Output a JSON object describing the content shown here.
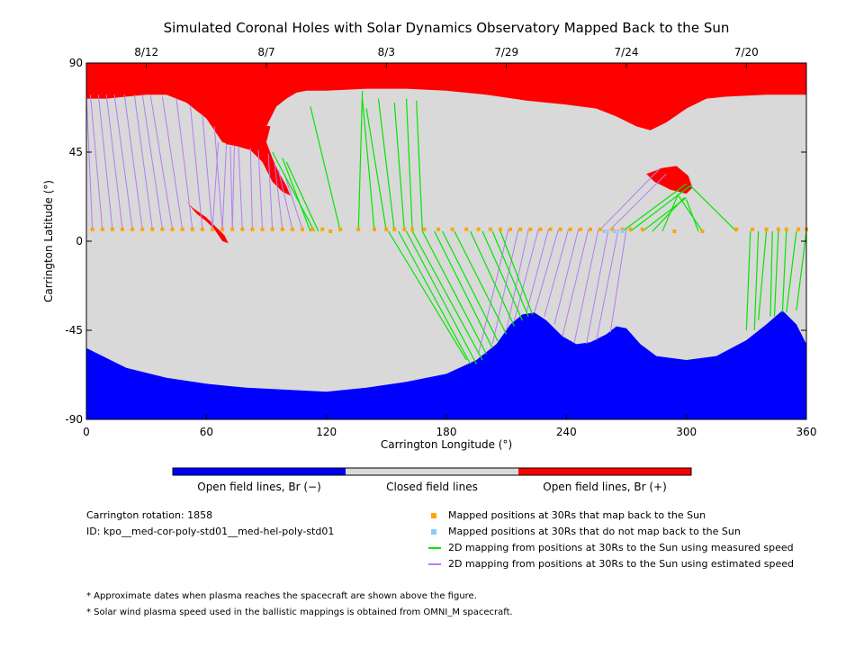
{
  "chart_data": {
    "type": "heatmap",
    "title": "Simulated Coronal Holes with Solar Dynamics Observatory Mapped Back to the Sun",
    "xlabel": "Carrington Longitude (°)",
    "ylabel": "Carrington Latitude (°)",
    "xlim": [
      0,
      360
    ],
    "ylim": [
      -90,
      90
    ],
    "xticks": [
      0,
      60,
      120,
      180,
      240,
      300,
      360
    ],
    "yticks": [
      -90,
      -45,
      0,
      45,
      90
    ],
    "top_axis": {
      "ticks": [
        {
          "label": "8/12",
          "lon": 30
        },
        {
          "label": "8/7",
          "lon": 90
        },
        {
          "label": "8/3",
          "lon": 150
        },
        {
          "label": "7/29",
          "lon": 210
        },
        {
          "label": "7/24",
          "lon": 270
        },
        {
          "label": "7/20",
          "lon": 330
        }
      ]
    },
    "colors": {
      "positive": "#ff0000",
      "negative": "#0000ff",
      "closed": "#d9d9d9",
      "mapped": "#ffa500",
      "not_mapped": "#87cefa",
      "measured": "#00e600",
      "estimated": "#b57cf2"
    },
    "north_boundary": [
      [
        0,
        72
      ],
      [
        10,
        72
      ],
      [
        20,
        73
      ],
      [
        30,
        74
      ],
      [
        40,
        74
      ],
      [
        50,
        70
      ],
      [
        60,
        62
      ],
      [
        65,
        55
      ],
      [
        70,
        49
      ],
      [
        75,
        48
      ],
      [
        80,
        49
      ],
      [
        85,
        52
      ],
      [
        90,
        58
      ],
      [
        95,
        68
      ],
      [
        100,
        72
      ],
      [
        105,
        75
      ],
      [
        110,
        76
      ],
      [
        120,
        76
      ],
      [
        140,
        77
      ],
      [
        160,
        77
      ],
      [
        180,
        76
      ],
      [
        200,
        74
      ],
      [
        220,
        71
      ],
      [
        240,
        69
      ],
      [
        255,
        67
      ],
      [
        265,
        63
      ],
      [
        275,
        58
      ],
      [
        282,
        56
      ],
      [
        290,
        60
      ],
      [
        300,
        67
      ],
      [
        310,
        72
      ],
      [
        320,
        73
      ],
      [
        340,
        74
      ],
      [
        360,
        74
      ]
    ],
    "south_boundary": [
      [
        0,
        -54
      ],
      [
        10,
        -59
      ],
      [
        20,
        -64
      ],
      [
        40,
        -69
      ],
      [
        60,
        -72
      ],
      [
        80,
        -74
      ],
      [
        100,
        -75
      ],
      [
        120,
        -76
      ],
      [
        140,
        -74
      ],
      [
        160,
        -71
      ],
      [
        180,
        -67
      ],
      [
        195,
        -60
      ],
      [
        205,
        -52
      ],
      [
        212,
        -42
      ],
      [
        218,
        -37
      ],
      [
        224,
        -36
      ],
      [
        230,
        -40
      ],
      [
        238,
        -48
      ],
      [
        245,
        -52
      ],
      [
        252,
        -51
      ],
      [
        260,
        -47
      ],
      [
        265,
        -43
      ],
      [
        270,
        -44
      ],
      [
        277,
        -52
      ],
      [
        285,
        -58
      ],
      [
        300,
        -60
      ],
      [
        315,
        -58
      ],
      [
        330,
        -50
      ],
      [
        340,
        -42
      ],
      [
        348,
        -35
      ],
      [
        355,
        -42
      ],
      [
        360,
        -52
      ]
    ],
    "positive_patches": [
      [
        [
          60,
          62
        ],
        [
          68,
          50
        ],
        [
          75,
          48
        ],
        [
          82,
          46
        ],
        [
          88,
          40
        ],
        [
          93,
          30
        ],
        [
          98,
          25
        ],
        [
          102,
          23
        ],
        [
          100,
          28
        ],
        [
          96,
          35
        ],
        [
          93,
          42
        ],
        [
          90,
          50
        ],
        [
          92,
          58
        ]
      ],
      [
        [
          50,
          20
        ],
        [
          55,
          14
        ],
        [
          60,
          10
        ],
        [
          64,
          6
        ],
        [
          68,
          0
        ],
        [
          71,
          -1
        ],
        [
          69,
          3
        ],
        [
          65,
          7
        ],
        [
          60,
          12
        ],
        [
          53,
          17
        ]
      ],
      [
        [
          280,
          34
        ],
        [
          288,
          37
        ],
        [
          295,
          38
        ],
        [
          301,
          33
        ],
        [
          303,
          27
        ],
        [
          300,
          24
        ],
        [
          292,
          26
        ],
        [
          284,
          30
        ]
      ]
    ],
    "mapped_points": {
      "lat": 6,
      "lon": [
        3,
        8,
        13,
        18,
        23,
        28,
        33,
        38,
        43,
        48,
        53,
        58,
        63,
        68,
        73,
        78,
        83,
        88,
        93,
        98,
        103,
        108,
        113,
        118,
        122,
        127,
        136,
        144,
        150,
        154,
        159,
        163,
        169,
        176,
        183,
        190,
        196,
        202,
        207,
        212,
        217,
        222,
        227,
        232,
        237,
        242,
        247,
        252,
        257,
        263,
        268,
        272,
        278,
        294,
        308,
        325,
        333,
        340,
        346,
        350,
        356,
        360
      ],
      "lat_overrides": [
        {
          "lon": 122,
          "lat": 5
        },
        {
          "lon": 308,
          "lat": 5
        },
        {
          "lon": 294,
          "lat": 5
        }
      ]
    },
    "unmapped_points": {
      "lat": 5,
      "lon": [
        259,
        264,
        268
      ]
    },
    "measured_lines": [
      [
        112,
        5,
        98,
        42
      ],
      [
        114,
        5,
        93,
        45
      ],
      [
        116,
        5,
        100,
        40
      ],
      [
        127,
        5,
        112,
        68
      ],
      [
        136,
        5,
        138,
        76
      ],
      [
        144,
        5,
        138,
        72
      ],
      [
        150,
        5,
        140,
        67
      ],
      [
        154,
        5,
        146,
        72
      ],
      [
        159,
        5,
        154,
        70
      ],
      [
        163,
        5,
        160,
        72
      ],
      [
        168,
        5,
        165,
        71
      ],
      [
        151,
        5,
        190,
        -60
      ],
      [
        156,
        5,
        192,
        -62
      ],
      [
        160,
        5,
        195,
        -62
      ],
      [
        163,
        5,
        198,
        -60
      ],
      [
        168,
        5,
        200,
        -57
      ],
      [
        174,
        5,
        203,
        -54
      ],
      [
        178,
        5,
        206,
        -51
      ],
      [
        184,
        5,
        210,
        -47
      ],
      [
        192,
        5,
        214,
        -43
      ],
      [
        198,
        5,
        218,
        -40
      ],
      [
        203,
        5,
        221,
        -38
      ],
      [
        207,
        5,
        223,
        -37
      ],
      [
        268,
        5,
        300,
        29
      ],
      [
        272,
        5,
        302,
        28
      ],
      [
        278,
        5,
        300,
        22
      ],
      [
        283,
        5,
        299,
        22
      ],
      [
        288,
        5,
        296,
        24
      ],
      [
        308,
        5,
        296,
        23
      ],
      [
        306,
        5,
        300,
        21
      ],
      [
        325,
        5,
        302,
        28
      ],
      [
        332,
        5,
        330,
        -45
      ],
      [
        336,
        5,
        334,
        -45
      ],
      [
        340,
        5,
        336,
        -40
      ],
      [
        343,
        5,
        342,
        -38
      ],
      [
        346,
        5,
        344,
        -38
      ],
      [
        350,
        5,
        348,
        -36
      ],
      [
        355,
        5,
        350,
        -36
      ],
      [
        360,
        5,
        355,
        -35
      ]
    ],
    "estimated_lines": [
      [
        3,
        6,
        0,
        74
      ],
      [
        8,
        6,
        2,
        74
      ],
      [
        13,
        6,
        6,
        74
      ],
      [
        18,
        6,
        10,
        74
      ],
      [
        23,
        6,
        14,
        74
      ],
      [
        28,
        6,
        19,
        74
      ],
      [
        33,
        6,
        24,
        74
      ],
      [
        38,
        6,
        28,
        74
      ],
      [
        43,
        6,
        32,
        74
      ],
      [
        48,
        6,
        38,
        73
      ],
      [
        53,
        6,
        45,
        72
      ],
      [
        58,
        6,
        52,
        68
      ],
      [
        63,
        6,
        58,
        64
      ],
      [
        68,
        6,
        64,
        58
      ],
      [
        73,
        6,
        72,
        48
      ],
      [
        78,
        6,
        76,
        48
      ],
      [
        83,
        6,
        82,
        47
      ],
      [
        88,
        6,
        86,
        46
      ],
      [
        93,
        6,
        91,
        44
      ],
      [
        98,
        6,
        94,
        40
      ],
      [
        103,
        6,
        96,
        36
      ],
      [
        108,
        6,
        99,
        34
      ],
      [
        63,
        6,
        66,
        50
      ],
      [
        68,
        6,
        70,
        49
      ],
      [
        73,
        6,
        74,
        48
      ],
      [
        211,
        6,
        196,
        -57
      ],
      [
        216,
        6,
        203,
        -52
      ],
      [
        221,
        6,
        210,
        -45
      ],
      [
        226,
        6,
        214,
        -40
      ],
      [
        231,
        6,
        220,
        -36
      ],
      [
        236,
        6,
        224,
        -36
      ],
      [
        241,
        6,
        229,
        -38
      ],
      [
        246,
        6,
        234,
        -42
      ],
      [
        251,
        6,
        238,
        -48
      ],
      [
        256,
        6,
        244,
        -51
      ],
      [
        261,
        6,
        250,
        -52
      ],
      [
        266,
        6,
        255,
        -50
      ],
      [
        270,
        6,
        262,
        -46
      ],
      [
        257,
        6,
        287,
        37
      ],
      [
        262,
        6,
        290,
        34
      ]
    ]
  },
  "colorbar": {
    "labels": [
      "Open field lines, Br (−)",
      "Closed field lines",
      "Open field lines, Br (+)"
    ]
  },
  "info": {
    "rotation": "Carrington rotation: 1858",
    "id": "ID: kpo__med-cor-poly-std01__med-hel-poly-std01"
  },
  "legend": [
    {
      "type": "square",
      "color": "#ffa500",
      "label": "Mapped positions at 30Rs that map back to the Sun"
    },
    {
      "type": "square",
      "color": "#87cefa",
      "label": "Mapped positions at 30Rs that do not map back to the Sun"
    },
    {
      "type": "line",
      "color": "#00e600",
      "label": "2D mapping from positions at 30Rs to the Sun using measured speed"
    },
    {
      "type": "line",
      "color": "#b57cf2",
      "label": "2D mapping from positions at 30Rs to the Sun using estimated speed"
    }
  ],
  "footnotes": [
    "* Approximate dates when plasma reaches the spacecraft are shown above the figure.",
    "* Solar wind plasma speed used in the ballistic mappings is obtained from OMNI_M spacecraft."
  ]
}
